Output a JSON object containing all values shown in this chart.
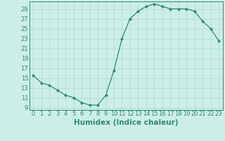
{
  "x": [
    0,
    1,
    2,
    3,
    4,
    5,
    6,
    7,
    8,
    9,
    10,
    11,
    12,
    13,
    14,
    15,
    16,
    17,
    18,
    19,
    20,
    21,
    22,
    23
  ],
  "y": [
    15.5,
    14.0,
    13.5,
    12.5,
    11.5,
    11.0,
    10.0,
    9.5,
    9.5,
    11.5,
    16.5,
    23.0,
    27.0,
    28.5,
    29.5,
    30.0,
    29.5,
    29.0,
    29.0,
    29.0,
    28.5,
    26.5,
    25.0,
    22.5
  ],
  "line_color": "#2e8b70",
  "marker": "D",
  "marker_size": 2.0,
  "bg_color": "#cceee8",
  "grid_color": "#b0d8d0",
  "xlabel": "Humidex (Indice chaleur)",
  "xlim": [
    -0.5,
    23.5
  ],
  "ylim": [
    8.5,
    30.5
  ],
  "yticks": [
    9,
    11,
    13,
    15,
    17,
    19,
    21,
    23,
    25,
    27,
    29
  ],
  "xticks": [
    0,
    1,
    2,
    3,
    4,
    5,
    6,
    7,
    8,
    9,
    10,
    11,
    12,
    13,
    14,
    15,
    16,
    17,
    18,
    19,
    20,
    21,
    22,
    23
  ],
  "xlabel_fontsize": 7.5,
  "tick_fontsize": 6.0
}
